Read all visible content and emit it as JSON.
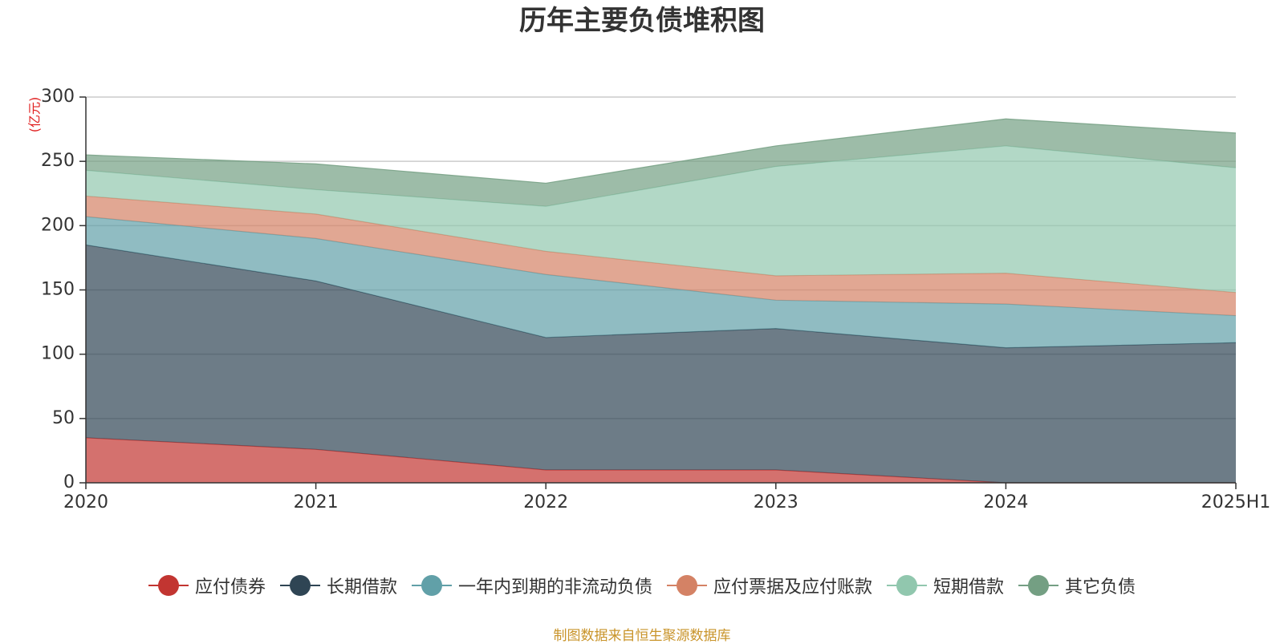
{
  "chart_data": {
    "type": "area",
    "stacked": true,
    "title": "历年主要负债堆积图",
    "unit_label": "(亿元)",
    "x": [
      "2020",
      "2021",
      "2022",
      "2023",
      "2024",
      "2025H1"
    ],
    "yticks": [
      "0",
      "50",
      "100",
      "150",
      "200",
      "250",
      "300"
    ],
    "ylim": [
      0,
      300
    ],
    "grid": true,
    "legend_position": "bottom",
    "series": [
      {
        "name": "应付债券",
        "color": "#c23531",
        "values": [
          35,
          26,
          10,
          10,
          0,
          0
        ]
      },
      {
        "name": "长期借款",
        "color": "#2f4554",
        "values": [
          150,
          131,
          103,
          110,
          105,
          109
        ]
      },
      {
        "name": "一年内到期的非流动负债",
        "color": "#61a0a8",
        "values": [
          22,
          33,
          49,
          22,
          34,
          21
        ]
      },
      {
        "name": "应付票据及应付账款",
        "color": "#d48265",
        "values": [
          16,
          19,
          18,
          19,
          24,
          18
        ]
      },
      {
        "name": "短期借款",
        "color": "#91c7ae",
        "values": [
          20,
          19,
          35,
          85,
          99,
          97
        ]
      },
      {
        "name": "其它负债",
        "color": "#749f83",
        "values": [
          12,
          20,
          18,
          16,
          21,
          27
        ]
      }
    ],
    "source_note": "制图数据来自恒生聚源数据库"
  }
}
